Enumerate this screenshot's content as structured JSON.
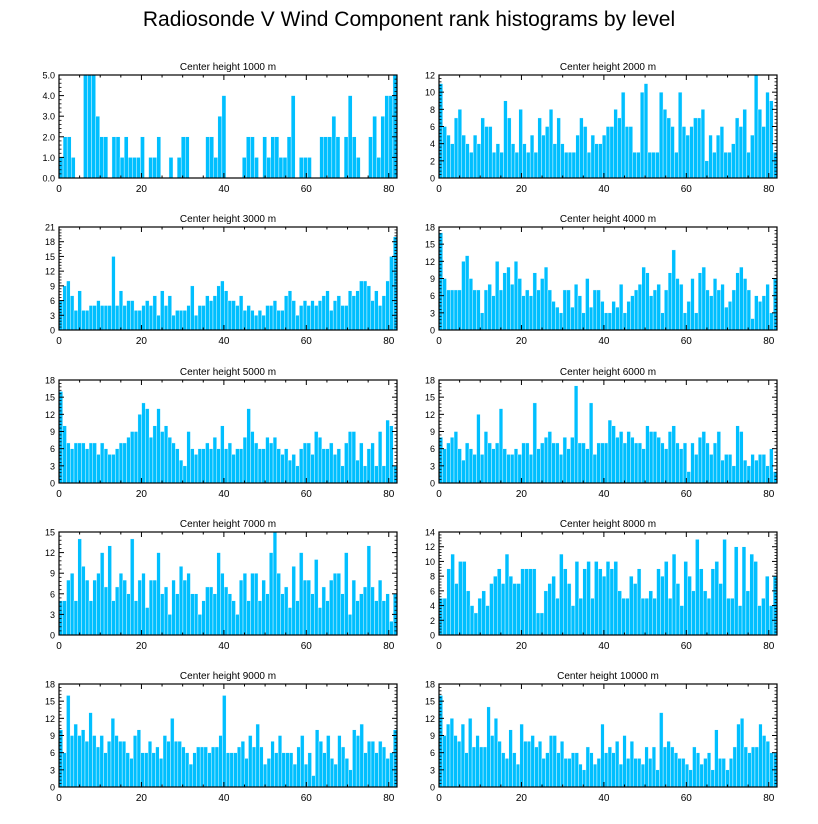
{
  "title": "Radiosonde V Wind Component rank histograms by level",
  "bar_color": "#00bfff",
  "bar_edge": "#ffffff",
  "axis_color": "#000000",
  "chart_data": [
    {
      "type": "bar",
      "title": "Center height 1000 m",
      "xlim": [
        0,
        82
      ],
      "xticks": [
        0,
        20,
        40,
        60,
        80
      ],
      "ylim": [
        0,
        5
      ],
      "yticks": [
        0,
        1,
        2,
        3,
        4,
        5
      ],
      "ytick_labels": [
        "0.0",
        "1.0",
        "2.0",
        "3.0",
        "4.0",
        "5.0"
      ],
      "values": [
        1,
        2,
        2,
        1,
        0,
        0,
        5,
        5,
        5,
        3,
        2,
        2,
        0,
        2,
        2,
        1,
        2,
        1,
        1,
        1,
        2,
        0,
        1,
        1,
        2,
        0,
        0,
        1,
        0,
        1,
        2,
        2,
        0,
        0,
        0,
        0,
        2,
        2,
        1,
        3,
        4,
        0,
        0,
        0,
        0,
        1,
        2,
        2,
        1,
        0,
        2,
        1,
        2,
        2,
        1,
        1,
        2,
        4,
        0,
        1,
        1,
        1,
        0,
        0,
        2,
        2,
        2,
        3,
        2,
        0,
        2,
        4,
        2,
        1,
        0,
        0,
        2,
        3,
        1,
        3,
        4,
        4,
        5
      ]
    },
    {
      "type": "bar",
      "title": "Center height 2000 m",
      "xlim": [
        0,
        82
      ],
      "xticks": [
        0,
        20,
        40,
        60,
        80
      ],
      "ylim": [
        0,
        12
      ],
      "yticks": [
        0,
        2,
        4,
        6,
        8,
        10,
        12
      ],
      "ytick_labels": [
        "0",
        "2",
        "4",
        "6",
        "8",
        "10",
        "12"
      ],
      "values": [
        11,
        6,
        5,
        4,
        7,
        8,
        5,
        4,
        3,
        5,
        4,
        7,
        6,
        6,
        3,
        4,
        3,
        9,
        7,
        4,
        3,
        8,
        4,
        3,
        5,
        3,
        7,
        5,
        6,
        8,
        4,
        7,
        4,
        3,
        3,
        3,
        5,
        7,
        6,
        3,
        5,
        4,
        4,
        5,
        6,
        6,
        8,
        7,
        10,
        6,
        6,
        3,
        3,
        10,
        11,
        3,
        3,
        3,
        10,
        8,
        7,
        6,
        3,
        10,
        6,
        5,
        6,
        7,
        7,
        8,
        2,
        5,
        3,
        5,
        6,
        3,
        3,
        4,
        7,
        6,
        8,
        3,
        5,
        12,
        8,
        6,
        10,
        9,
        3
      ]
    },
    {
      "type": "bar",
      "title": "Center height 3000 m",
      "xlim": [
        0,
        82
      ],
      "xticks": [
        0,
        20,
        40,
        60,
        80
      ],
      "ylim": [
        0,
        21
      ],
      "yticks": [
        0,
        3,
        6,
        9,
        12,
        15,
        18,
        21
      ],
      "ytick_labels": [
        "0",
        "3",
        "6",
        "9",
        "12",
        "15",
        "18",
        "21"
      ],
      "values": [
        6,
        9,
        10,
        7,
        4,
        8,
        4,
        4,
        5,
        5,
        6,
        5,
        5,
        5,
        15,
        5,
        8,
        5,
        6,
        6,
        4,
        4,
        5,
        6,
        5,
        7,
        3,
        8,
        5,
        7,
        3,
        4,
        4,
        4,
        5,
        9,
        3,
        5,
        5,
        7,
        6,
        7,
        9,
        10,
        8,
        6,
        6,
        5,
        7,
        4,
        5,
        4,
        3,
        4,
        3,
        5,
        5,
        6,
        4,
        4,
        7,
        8,
        6,
        3,
        5,
        6,
        5,
        6,
        5,
        6,
        7,
        8,
        4,
        6,
        7,
        5,
        5,
        8,
        7,
        8,
        10,
        10,
        9,
        6,
        8,
        5,
        7,
        10,
        15,
        19
      ]
    },
    {
      "type": "bar",
      "title": "Center height 4000 m",
      "xlim": [
        0,
        82
      ],
      "xticks": [
        0,
        20,
        40,
        60,
        80
      ],
      "ylim": [
        0,
        18
      ],
      "yticks": [
        0,
        3,
        6,
        9,
        12,
        15,
        18
      ],
      "ytick_labels": [
        "0",
        "3",
        "6",
        "9",
        "12",
        "15",
        "18"
      ],
      "values": [
        17,
        9,
        7,
        7,
        7,
        7,
        12,
        13,
        9,
        7,
        7,
        3,
        7,
        8,
        6,
        12,
        7,
        10,
        11,
        8,
        12,
        9,
        6,
        7,
        6,
        10,
        7,
        9,
        11,
        7,
        5,
        4,
        3,
        7,
        7,
        4,
        8,
        6,
        3,
        9,
        4,
        7,
        7,
        5,
        3,
        3,
        5,
        4,
        8,
        3,
        5,
        6,
        7,
        8,
        11,
        10,
        6,
        7,
        8,
        3,
        7,
        10,
        14,
        9,
        8,
        3,
        5,
        9,
        3,
        10,
        11,
        7,
        6,
        9,
        7,
        8,
        4,
        5,
        7,
        10,
        11,
        9,
        7,
        2,
        6,
        5,
        6,
        8,
        3,
        9
      ]
    },
    {
      "type": "bar",
      "title": "Center height 5000 m",
      "xlim": [
        0,
        82
      ],
      "xticks": [
        0,
        20,
        40,
        60,
        80
      ],
      "ylim": [
        0,
        18
      ],
      "yticks": [
        0,
        3,
        6,
        9,
        12,
        15,
        18
      ],
      "ytick_labels": [
        "0",
        "3",
        "6",
        "9",
        "12",
        "15",
        "18"
      ],
      "values": [
        16,
        10,
        7,
        6,
        7,
        7,
        7,
        6,
        7,
        7,
        5,
        7,
        6,
        5,
        5,
        6,
        7,
        7,
        8,
        9,
        9,
        12,
        14,
        13,
        8,
        10,
        13,
        9,
        10,
        8,
        7,
        6,
        4,
        3,
        9,
        6,
        5,
        6,
        6,
        7,
        6,
        8,
        6,
        10,
        6,
        7,
        5,
        6,
        6,
        8,
        13,
        9,
        7,
        6,
        6,
        8,
        7,
        8,
        6,
        5,
        6,
        4,
        5,
        3,
        6,
        7,
        7,
        5,
        9,
        8,
        6,
        6,
        7,
        5,
        6,
        3,
        7,
        9,
        9,
        4,
        7,
        3,
        6,
        7,
        3,
        9,
        3,
        11,
        10,
        3
      ]
    },
    {
      "type": "bar",
      "title": "Center height 6000 m",
      "xlim": [
        0,
        82
      ],
      "xticks": [
        0,
        20,
        40,
        60,
        80
      ],
      "ylim": [
        0,
        18
      ],
      "yticks": [
        0,
        3,
        6,
        9,
        12,
        15,
        18
      ],
      "ytick_labels": [
        "0",
        "3",
        "6",
        "9",
        "12",
        "15",
        "18"
      ],
      "values": [
        8,
        6,
        7,
        8,
        9,
        6,
        4,
        7,
        6,
        5,
        12,
        5,
        9,
        7,
        6,
        7,
        13,
        6,
        5,
        5,
        6,
        5,
        7,
        7,
        5,
        14,
        6,
        7,
        8,
        9,
        7,
        7,
        5,
        8,
        6,
        8,
        17,
        7,
        7,
        6,
        14,
        5,
        7,
        7,
        7,
        11,
        10,
        8,
        9,
        7,
        9,
        8,
        7,
        7,
        6,
        10,
        9,
        9,
        8,
        7,
        6,
        9,
        10,
        7,
        6,
        7,
        2,
        7,
        5,
        8,
        9,
        7,
        5,
        7,
        9,
        4,
        5,
        5,
        3,
        10,
        9,
        4,
        3,
        5,
        4,
        5,
        5,
        3,
        6,
        2
      ]
    },
    {
      "type": "bar",
      "title": "Center height 7000 m",
      "xlim": [
        0,
        82
      ],
      "xticks": [
        0,
        20,
        40,
        60,
        80
      ],
      "ylim": [
        0,
        15
      ],
      "yticks": [
        0,
        3,
        6,
        9,
        12,
        15
      ],
      "ytick_labels": [
        "0",
        "3",
        "6",
        "9",
        "12",
        "15"
      ],
      "values": [
        5,
        5,
        8,
        9,
        5,
        14,
        10,
        8,
        5,
        8,
        9,
        12,
        7,
        13,
        5,
        7,
        9,
        8,
        6,
        14,
        5,
        8,
        9,
        4,
        8,
        8,
        12,
        6,
        7,
        3,
        8,
        6,
        10,
        8,
        9,
        6,
        6,
        3,
        5,
        7,
        7,
        6,
        12,
        9,
        7,
        6,
        5,
        3,
        8,
        9,
        5,
        9,
        9,
        5,
        8,
        6,
        12,
        15,
        9,
        6,
        7,
        4,
        10,
        5,
        12,
        8,
        8,
        6,
        11,
        4,
        7,
        5,
        8,
        9,
        9,
        6,
        12,
        3,
        8,
        5,
        6,
        7,
        13,
        7,
        5,
        8,
        5,
        6,
        2,
        6
      ]
    },
    {
      "type": "bar",
      "title": "Center height 8000 m",
      "xlim": [
        0,
        82
      ],
      "xticks": [
        0,
        20,
        40,
        60,
        80
      ],
      "ylim": [
        0,
        14
      ],
      "yticks": [
        0,
        2,
        4,
        6,
        8,
        10,
        12,
        14
      ],
      "ytick_labels": [
        "0",
        "2",
        "4",
        "6",
        "8",
        "10",
        "12",
        "14"
      ],
      "values": [
        5,
        5,
        9,
        11,
        7,
        10,
        10,
        6,
        4,
        3,
        5,
        6,
        4,
        7,
        8,
        9,
        7,
        11,
        8,
        7,
        7,
        9,
        9,
        9,
        9,
        3,
        3,
        6,
        7,
        8,
        5,
        11,
        9,
        7,
        4,
        10,
        5,
        9,
        10,
        5,
        10,
        9,
        8,
        10,
        9,
        10,
        6,
        5,
        5,
        8,
        7,
        9,
        5,
        5,
        6,
        5,
        9,
        8,
        10,
        5,
        11,
        7,
        4,
        10,
        8,
        6,
        13,
        9,
        6,
        5,
        9,
        10,
        7,
        13,
        5,
        5,
        12,
        4,
        12,
        6,
        11,
        10,
        4,
        5,
        8,
        4,
        8
      ]
    },
    {
      "type": "bar",
      "title": "Center height 9000 m",
      "xlim": [
        0,
        82
      ],
      "xticks": [
        0,
        20,
        40,
        60,
        80
      ],
      "ylim": [
        0,
        18
      ],
      "yticks": [
        0,
        3,
        6,
        9,
        12,
        15,
        18
      ],
      "ytick_labels": [
        "0",
        "3",
        "6",
        "9",
        "12",
        "15",
        "18"
      ],
      "values": [
        10,
        6,
        16,
        9,
        11,
        9,
        10,
        8,
        13,
        9,
        7,
        9,
        6,
        8,
        12,
        9,
        8,
        8,
        6,
        5,
        9,
        10,
        6,
        6,
        8,
        6,
        7,
        5,
        9,
        8,
        12,
        8,
        8,
        7,
        6,
        4,
        6,
        7,
        7,
        7,
        6,
        7,
        7,
        9,
        16,
        6,
        6,
        6,
        7,
        8,
        5,
        9,
        7,
        11,
        7,
        4,
        5,
        8,
        6,
        9,
        6,
        6,
        6,
        4,
        7,
        9,
        4,
        6,
        2,
        10,
        8,
        6,
        9,
        5,
        4,
        9,
        7,
        5,
        3,
        10,
        9,
        11,
        6,
        8,
        8,
        6,
        8,
        7,
        5,
        6,
        10
      ]
    },
    {
      "type": "bar",
      "title": "Center height 10000 m",
      "xlim": [
        0,
        82
      ],
      "xticks": [
        0,
        20,
        40,
        60,
        80
      ],
      "ylim": [
        0,
        18
      ],
      "yticks": [
        0,
        3,
        6,
        9,
        12,
        15,
        18
      ],
      "ytick_labels": [
        "0",
        "3",
        "6",
        "9",
        "12",
        "15",
        "18"
      ],
      "values": [
        16,
        9,
        11,
        12,
        9,
        8,
        11,
        6,
        12,
        7,
        9,
        7,
        7,
        14,
        9,
        12,
        8,
        6,
        5,
        10,
        6,
        4,
        11,
        8,
        8,
        9,
        7,
        8,
        5,
        6,
        9,
        9,
        6,
        8,
        5,
        5,
        6,
        6,
        4,
        3,
        7,
        6,
        4,
        5,
        11,
        6,
        7,
        6,
        8,
        4,
        9,
        5,
        8,
        5,
        5,
        4,
        7,
        5,
        7,
        3,
        13,
        7,
        8,
        7,
        6,
        5,
        5,
        4,
        3,
        7,
        6,
        4,
        5,
        6,
        3,
        10,
        5,
        5,
        3,
        5,
        7,
        11,
        12,
        7,
        6,
        7,
        7,
        11,
        9,
        8,
        6,
        6
      ]
    }
  ]
}
